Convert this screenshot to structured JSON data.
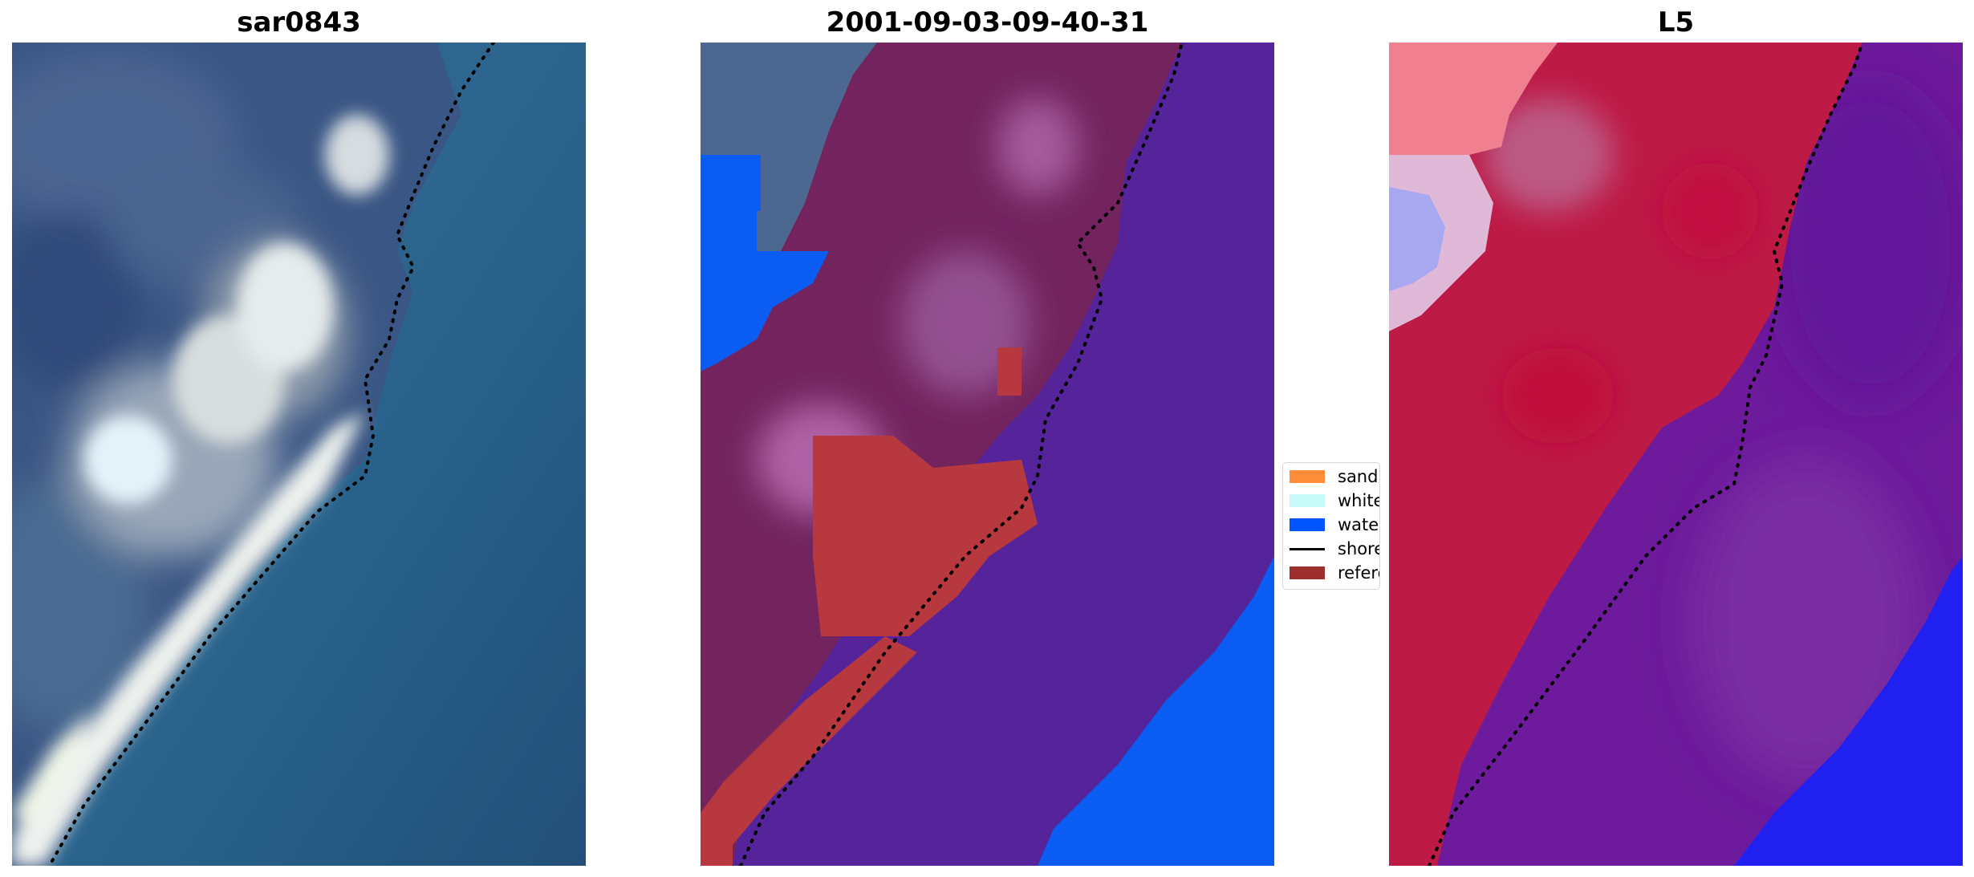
{
  "panels": [
    {
      "title": "sar0843"
    },
    {
      "title": "2001-09-03-09-40-31"
    },
    {
      "title": "L5"
    }
  ],
  "legend": {
    "items": [
      {
        "label": "sand",
        "kind": "patch",
        "color": "#ff8c38"
      },
      {
        "label": "whitewater",
        "kind": "patch",
        "color": "#c8fafa"
      },
      {
        "label": "water",
        "kind": "patch",
        "color": "#0055ff"
      },
      {
        "label": "shoreline",
        "kind": "line",
        "color": "#000000"
      },
      {
        "label": "reference",
        "kind": "patch",
        "color": "#9e2f2f"
      }
    ]
  },
  "colors": {
    "sea_rgb": "#2a5e86",
    "beach_rgb": "#e6ecec",
    "overlay_purple": "#55249a",
    "overlay_land": "#722460",
    "overlay_water": "#0055ff",
    "overlay_red": "#b8383f",
    "l5_red": "#c0143c",
    "l5_purple": "#6d1a9c",
    "l5_blue": "#1e1ef0"
  }
}
